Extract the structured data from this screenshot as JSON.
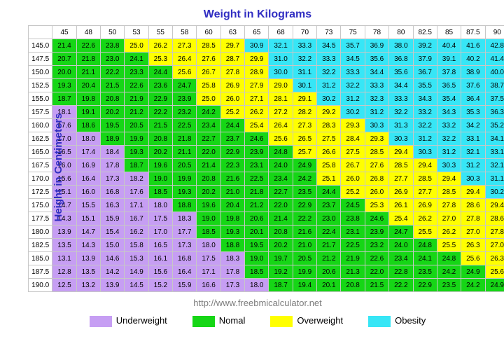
{
  "chart": {
    "type": "heatmap-table",
    "x_title": "Weight in Kilograms",
    "y_title": "Height in Centimeters",
    "source": "http://www.freebmicalculator.net",
    "weights": [
      45,
      48,
      50,
      53,
      55,
      58,
      60,
      63,
      65,
      68,
      70,
      73,
      75,
      78,
      80,
      82.5,
      85,
      87.5,
      90
    ],
    "heights": [
      145.0,
      147.5,
      150.0,
      152.5,
      155.0,
      157.5,
      160.0,
      162.5,
      165.0,
      167.5,
      170.0,
      172.5,
      175.0,
      177.5,
      180.0,
      182.5,
      185.0,
      187.5,
      190.0
    ],
    "values": [
      [
        21.4,
        22.6,
        23.8,
        25.0,
        26.2,
        27.3,
        28.5,
        29.7,
        30.9,
        32.1,
        33.3,
        34.5,
        35.7,
        36.9,
        38.0,
        39.2,
        40.4,
        41.6,
        42.8
      ],
      [
        20.7,
        21.8,
        23.0,
        24.1,
        25.3,
        26.4,
        27.6,
        28.7,
        29.9,
        31.0,
        32.2,
        33.3,
        34.5,
        35.6,
        36.8,
        37.9,
        39.1,
        40.2,
        41.4
      ],
      [
        20.0,
        21.1,
        22.2,
        23.3,
        24.4,
        25.6,
        26.7,
        27.8,
        28.9,
        30.0,
        31.1,
        32.2,
        33.3,
        34.4,
        35.6,
        36.7,
        37.8,
        38.9,
        40.0
      ],
      [
        19.3,
        20.4,
        21.5,
        22.6,
        23.6,
        24.7,
        25.8,
        26.9,
        27.9,
        29.0,
        30.1,
        31.2,
        32.2,
        33.3,
        34.4,
        35.5,
        36.5,
        37.6,
        38.7
      ],
      [
        18.7,
        19.8,
        20.8,
        21.9,
        22.9,
        23.9,
        25.0,
        26.0,
        27.1,
        28.1,
        29.1,
        30.2,
        31.2,
        32.3,
        33.3,
        34.3,
        35.4,
        36.4,
        37.5
      ],
      [
        18.1,
        19.1,
        20.2,
        21.2,
        22.2,
        23.2,
        24.2,
        25.2,
        26.2,
        27.2,
        28.2,
        29.2,
        30.2,
        31.2,
        32.2,
        33.2,
        34.3,
        35.3,
        36.3
      ],
      [
        17.6,
        18.6,
        19.5,
        20.5,
        21.5,
        22.5,
        23.4,
        24.4,
        25.4,
        26.4,
        27.3,
        28.3,
        29.3,
        30.3,
        31.3,
        32.2,
        33.2,
        34.2,
        35.2
      ],
      [
        17.0,
        18.0,
        18.9,
        19.9,
        20.8,
        21.8,
        22.7,
        23.7,
        24.6,
        25.6,
        26.5,
        27.5,
        28.4,
        29.3,
        30.3,
        31.2,
        32.2,
        33.1,
        34.1
      ],
      [
        16.5,
        17.4,
        18.4,
        19.3,
        20.2,
        21.1,
        22.0,
        22.9,
        23.9,
        24.8,
        25.7,
        26.6,
        27.5,
        28.5,
        29.4,
        30.3,
        31.2,
        32.1,
        33.1
      ],
      [
        16.0,
        16.9,
        17.8,
        18.7,
        19.6,
        20.5,
        21.4,
        22.3,
        23.1,
        24.0,
        24.9,
        25.8,
        26.7,
        27.6,
        28.5,
        29.4,
        30.3,
        31.2,
        32.1
      ],
      [
        15.6,
        16.4,
        17.3,
        18.2,
        19.0,
        19.9,
        20.8,
        21.6,
        22.5,
        23.4,
        24.2,
        25.1,
        26.0,
        26.8,
        27.7,
        28.5,
        29.4,
        30.3,
        31.1
      ],
      [
        15.1,
        16.0,
        16.8,
        17.6,
        18.5,
        19.3,
        20.2,
        21.0,
        21.8,
        22.7,
        23.5,
        24.4,
        25.2,
        26.0,
        26.9,
        27.7,
        28.5,
        29.4,
        30.2
      ],
      [
        14.7,
        15.5,
        16.3,
        17.1,
        18.0,
        18.8,
        19.6,
        20.4,
        21.2,
        22.0,
        22.9,
        23.7,
        24.5,
        25.3,
        26.1,
        26.9,
        27.8,
        28.6,
        29.4
      ],
      [
        14.3,
        15.1,
        15.9,
        16.7,
        17.5,
        18.3,
        19.0,
        19.8,
        20.6,
        21.4,
        22.2,
        23.0,
        23.8,
        24.6,
        25.4,
        26.2,
        27.0,
        27.8,
        28.6
      ],
      [
        13.9,
        14.7,
        15.4,
        16.2,
        17.0,
        17.7,
        18.5,
        19.3,
        20.1,
        20.8,
        21.6,
        22.4,
        23.1,
        23.9,
        24.7,
        25.5,
        26.2,
        27.0,
        27.8
      ],
      [
        13.5,
        14.3,
        15.0,
        15.8,
        16.5,
        17.3,
        18.0,
        18.8,
        19.5,
        20.2,
        21.0,
        21.7,
        22.5,
        23.2,
        24.0,
        24.8,
        25.5,
        26.3,
        27.0
      ],
      [
        13.1,
        13.9,
        14.6,
        15.3,
        16.1,
        16.8,
        17.5,
        18.3,
        19.0,
        19.7,
        20.5,
        21.2,
        21.9,
        22.6,
        23.4,
        24.1,
        24.8,
        25.6,
        26.3
      ],
      [
        12.8,
        13.5,
        14.2,
        14.9,
        15.6,
        16.4,
        17.1,
        17.8,
        18.5,
        19.2,
        19.9,
        20.6,
        21.3,
        22.0,
        22.8,
        23.5,
        24.2,
        24.9,
        25.6
      ],
      [
        12.5,
        13.2,
        13.9,
        14.5,
        15.2,
        15.9,
        16.6,
        17.3,
        18.0,
        18.7,
        19.4,
        20.1,
        20.8,
        21.5,
        22.2,
        22.9,
        23.5,
        24.2,
        24.9
      ]
    ],
    "breaks": {
      "under": 18.5,
      "normal": 25.0,
      "over": 30.0
    },
    "colors": {
      "Underweight": "#c69ef3",
      "Normal": "#16d616",
      "Overweight": "#ffff00",
      "Obesity": "#37e6f6",
      "grid": "#c7c7c7",
      "header_bg": "#ffffff",
      "text": "#000000",
      "title": "#312ec2"
    },
    "font_size_cell": 10,
    "legend": [
      {
        "label": "Underweight",
        "key": "Underweight"
      },
      {
        "label": "Nomal",
        "key": "Normal"
      },
      {
        "label": "Overweight",
        "key": "Overweight"
      },
      {
        "label": "Obesity",
        "key": "Obesity"
      }
    ]
  }
}
